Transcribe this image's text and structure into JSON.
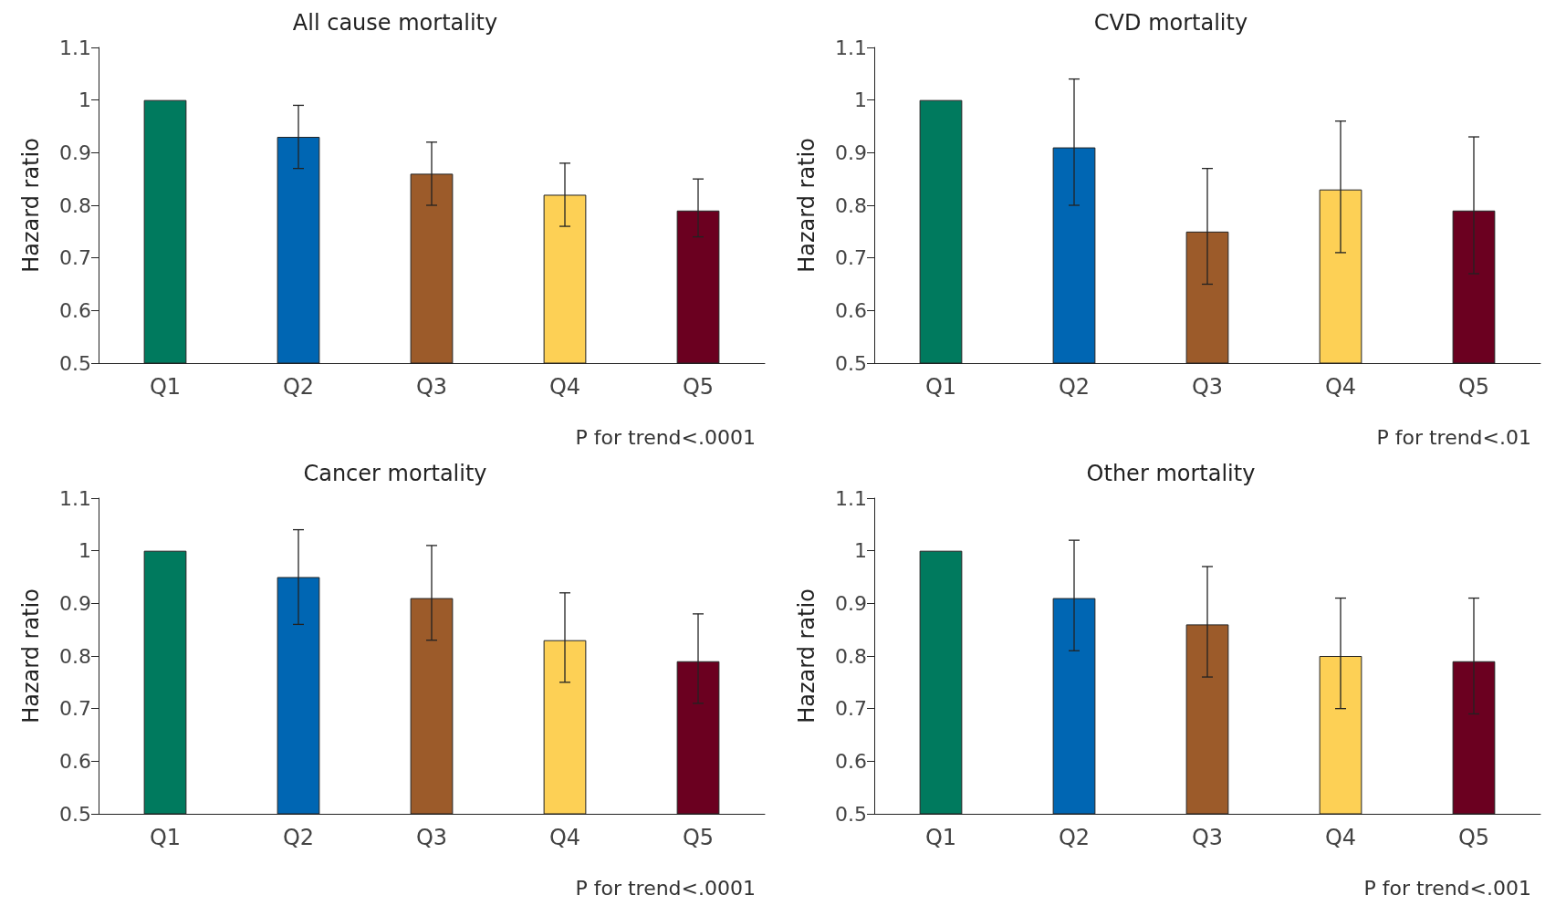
{
  "chart_data": [
    {
      "type": "bar",
      "title": "All cause mortality",
      "ylabel": "Hazard ratio",
      "categories": [
        "Q1",
        "Q2",
        "Q3",
        "Q4",
        "Q5"
      ],
      "values": [
        1.0,
        0.93,
        0.86,
        0.82,
        0.79
      ],
      "colors": [
        "#007a5e",
        "#0066b3",
        "#9c5b2a",
        "#fdd055",
        "#6b0020"
      ],
      "errors": [
        null,
        [
          0.87,
          0.99
        ],
        [
          0.8,
          0.92
        ],
        [
          0.76,
          0.88
        ],
        [
          0.74,
          0.85
        ]
      ],
      "ylim": [
        0.5,
        1.1
      ],
      "yticks": [
        0.5,
        0.6,
        0.7,
        0.8,
        0.9,
        1,
        1.1
      ],
      "grid": false,
      "annotations": [
        "P for trend<.0001"
      ]
    },
    {
      "type": "bar",
      "title": "CVD mortality",
      "ylabel": "Hazard ratio",
      "categories": [
        "Q1",
        "Q2",
        "Q3",
        "Q4",
        "Q5"
      ],
      "values": [
        1.0,
        0.91,
        0.75,
        0.83,
        0.79
      ],
      "colors": [
        "#007a5e",
        "#0066b3",
        "#9c5b2a",
        "#fdd055",
        "#6b0020"
      ],
      "errors": [
        null,
        [
          0.8,
          1.04
        ],
        [
          0.65,
          0.87
        ],
        [
          0.71,
          0.96
        ],
        [
          0.67,
          0.93
        ]
      ],
      "ylim": [
        0.5,
        1.1
      ],
      "yticks": [
        0.5,
        0.6,
        0.7,
        0.8,
        0.9,
        1,
        1.1
      ],
      "grid": false,
      "annotations": [
        "P for trend<.01"
      ]
    },
    {
      "type": "bar",
      "title": "Cancer mortality",
      "ylabel": "Hazard ratio",
      "categories": [
        "Q1",
        "Q2",
        "Q3",
        "Q4",
        "Q5"
      ],
      "values": [
        1.0,
        0.95,
        0.91,
        0.83,
        0.79
      ],
      "colors": [
        "#007a5e",
        "#0066b3",
        "#9c5b2a",
        "#fdd055",
        "#6b0020"
      ],
      "errors": [
        null,
        [
          0.86,
          1.04
        ],
        [
          0.83,
          1.01
        ],
        [
          0.75,
          0.92
        ],
        [
          0.71,
          0.88
        ]
      ],
      "ylim": [
        0.5,
        1.1
      ],
      "yticks": [
        0.5,
        0.6,
        0.7,
        0.8,
        0.9,
        1,
        1.1
      ],
      "grid": false,
      "annotations": [
        "P for trend<.0001"
      ]
    },
    {
      "type": "bar",
      "title": "Other mortality",
      "ylabel": "Hazard ratio",
      "categories": [
        "Q1",
        "Q2",
        "Q3",
        "Q4",
        "Q5"
      ],
      "values": [
        1.0,
        0.91,
        0.86,
        0.8,
        0.79
      ],
      "colors": [
        "#007a5e",
        "#0066b3",
        "#9c5b2a",
        "#fdd055",
        "#6b0020"
      ],
      "errors": [
        null,
        [
          0.81,
          1.02
        ],
        [
          0.76,
          0.97
        ],
        [
          0.7,
          0.91
        ],
        [
          0.69,
          0.91
        ]
      ],
      "ylim": [
        0.5,
        1.1
      ],
      "yticks": [
        0.5,
        0.6,
        0.7,
        0.8,
        0.9,
        1,
        1.1
      ],
      "grid": false,
      "annotations": [
        "P for trend<.001"
      ]
    }
  ]
}
